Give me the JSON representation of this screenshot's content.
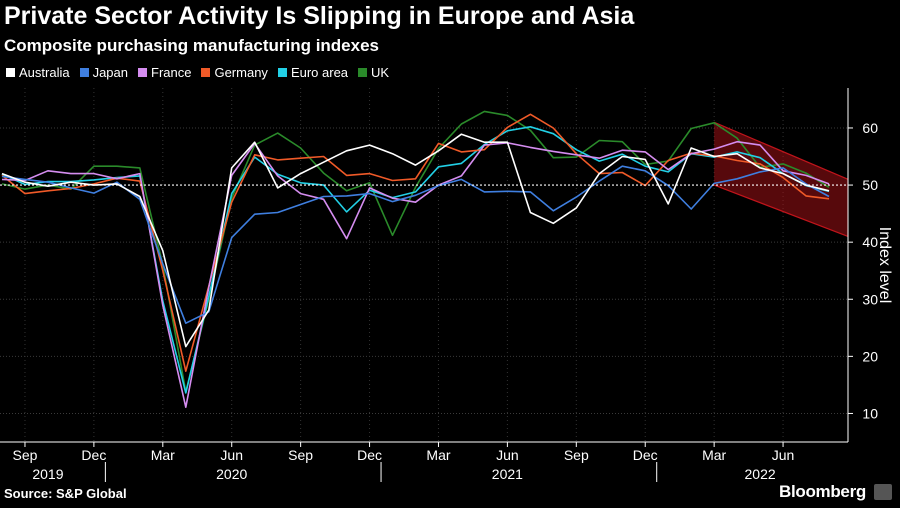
{
  "chart_data": {
    "type": "line",
    "title": "Private Sector Activity Is Slipping in Europe and Asia",
    "subtitle": "Composite purchasing manufacturing indexes",
    "ylabel": "Index level",
    "ylim": [
      5,
      67
    ],
    "yticks": [
      10,
      20,
      30,
      40,
      50,
      60
    ],
    "reference_line": 50,
    "x_months": [
      "2019-08",
      "2019-09",
      "2019-10",
      "2019-11",
      "2019-12",
      "2020-01",
      "2020-02",
      "2020-03",
      "2020-04",
      "2020-05",
      "2020-06",
      "2020-07",
      "2020-08",
      "2020-09",
      "2020-10",
      "2020-11",
      "2020-12",
      "2021-01",
      "2021-02",
      "2021-03",
      "2021-04",
      "2021-05",
      "2021-06",
      "2021-07",
      "2021-08",
      "2021-09",
      "2021-10",
      "2021-11",
      "2021-12",
      "2022-01",
      "2022-02",
      "2022-03",
      "2022-04",
      "2022-05",
      "2022-06",
      "2022-07",
      "2022-08"
    ],
    "month_ticks": [
      {
        "label": "Sep",
        "month": "2019-09"
      },
      {
        "label": "Dec",
        "month": "2019-12"
      },
      {
        "label": "Mar",
        "month": "2020-03"
      },
      {
        "label": "Jun",
        "month": "2020-06"
      },
      {
        "label": "Sep",
        "month": "2020-09"
      },
      {
        "label": "Dec",
        "month": "2020-12"
      },
      {
        "label": "Mar",
        "month": "2021-03"
      },
      {
        "label": "Jun",
        "month": "2021-06"
      },
      {
        "label": "Sep",
        "month": "2021-09"
      },
      {
        "label": "Dec",
        "month": "2021-12"
      },
      {
        "label": "Mar",
        "month": "2022-03"
      },
      {
        "label": "Jun",
        "month": "2022-06"
      }
    ],
    "year_labels": [
      {
        "label": "2019",
        "month": "2019-10"
      },
      {
        "label": "2020",
        "month": "2020-06"
      },
      {
        "label": "2021",
        "month": "2021-06"
      },
      {
        "label": "2022",
        "month": "2022-05"
      }
    ],
    "year_separators": [
      "2019-12",
      "2020-12",
      "2021-12"
    ],
    "trend_channel": {
      "start_month": "2022-03",
      "end_month": "2022-08",
      "upper_start": 61,
      "upper_end": 51,
      "lower_start": 50,
      "lower_end": 41,
      "color": "#c0141b"
    },
    "series": [
      {
        "name": "Australia",
        "color": "#ffffff",
        "values": [
          52,
          50.5,
          49.8,
          50.5,
          50,
          50.2,
          48,
          38.5,
          21.7,
          28.1,
          53,
          57.5,
          49.5,
          52,
          54,
          56,
          57,
          55.5,
          53.5,
          56,
          58.9,
          57.5,
          57.5,
          45.2,
          43.3,
          46,
          52,
          55,
          54.5,
          46.7,
          56.5,
          55,
          55.5,
          53,
          52,
          50,
          49
        ]
      },
      {
        "name": "Japan",
        "color": "#3f7fe0",
        "values": [
          51.5,
          51,
          50.5,
          49.5,
          48.6,
          50.5,
          47.5,
          36.2,
          25.8,
          27.8,
          40.8,
          44.9,
          45.2,
          46.6,
          48,
          48.1,
          48.5,
          47.1,
          48.2,
          49.9,
          51,
          48.8,
          48.9,
          48.8,
          45.5,
          47.9,
          50.7,
          53.3,
          52.5,
          49.9,
          45.8,
          50.3,
          51.1,
          52.3,
          53,
          50.2,
          48
        ]
      },
      {
        "name": "France",
        "color": "#d58df0",
        "values": [
          51,
          50.8,
          52.5,
          52,
          52,
          51.1,
          52,
          28.9,
          11.1,
          32.1,
          51.7,
          57.3,
          51.6,
          48.5,
          47.5,
          40.6,
          49.5,
          47.7,
          47,
          50,
          51.6,
          57,
          57.4,
          56.6,
          55.9,
          55.3,
          54.7,
          56.1,
          55.8,
          52.7,
          55.5,
          56.3,
          57.6,
          57,
          52.5,
          51.7,
          50.2
        ]
      },
      {
        "name": "Germany",
        "color": "#f05a28",
        "values": [
          51.7,
          48.5,
          49,
          49.4,
          50.2,
          51.2,
          50.7,
          35,
          17.4,
          32.3,
          47,
          55.3,
          54.4,
          54.7,
          55,
          51.7,
          52,
          50.8,
          51.1,
          57.3,
          55.8,
          56.2,
          60.1,
          62.4,
          60,
          55.5,
          52,
          52.2,
          49.9,
          54.3,
          55.6,
          55.1,
          54.3,
          53.7,
          51.3,
          48.1,
          47.6
        ]
      },
      {
        "name": "Euro area",
        "color": "#22d0e6",
        "values": [
          51.9,
          50.1,
          50.6,
          50.6,
          50.9,
          51.3,
          51.6,
          29.7,
          13.6,
          30.5,
          48.5,
          54.9,
          51.9,
          50.4,
          50,
          45.3,
          49.1,
          47.8,
          48.8,
          53.2,
          53.8,
          57.1,
          59.5,
          60.2,
          59,
          56.2,
          54.2,
          55.4,
          53.3,
          52.3,
          55.5,
          54.9,
          55.8,
          54.8,
          52,
          49.9,
          48.9
        ]
      },
      {
        "name": "UK",
        "color": "#2a8a2a",
        "values": [
          50.2,
          49.3,
          50,
          49.3,
          53.3,
          53.3,
          53,
          36,
          13.8,
          30,
          47.7,
          57,
          59.1,
          56.5,
          52.1,
          49,
          50.4,
          41.2,
          49.6,
          56.4,
          60.7,
          62.9,
          62.2,
          59.6,
          54.8,
          54.9,
          57.8,
          57.6,
          53.6,
          54.2,
          59.9,
          60.9,
          58.2,
          53.1,
          53.7,
          52.1,
          49.6
        ]
      }
    ]
  },
  "footer": {
    "source": "Source: S&P Global",
    "brand": "Bloomberg"
  }
}
